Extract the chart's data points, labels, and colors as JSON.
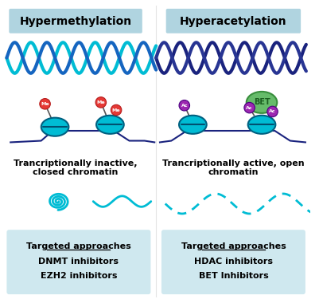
{
  "title_left": "Hypermethylation",
  "title_right": "Hyperacetylation",
  "label_left": "Trancriptionally inactive,\nclosed chromatin",
  "label_right": "Trancriptionally active, open\nchromatin",
  "box_left_title": "Targeted approaches",
  "box_left_items": [
    "DNMT inhibitors",
    "EZH2 inhibitors"
  ],
  "box_right_title": "Targeted approaches",
  "box_right_items": [
    "HDAC inhibitors",
    "BET Inhibitors"
  ],
  "bg_color": "#ffffff",
  "dna_left_color1": "#00bcd4",
  "dna_left_color2": "#1565c0",
  "dna_right_color1": "#1a237e",
  "dna_right_color2": "#283593",
  "nucleosome_color": "#00bcd4",
  "me_color": "#e53935",
  "ac_color": "#9c27b0",
  "bet_color": "#66bb6a",
  "chromatin_left_color": "#00bcd4",
  "chromatin_right_color": "#00bcd4",
  "box_color": "#cfe8ef",
  "header_box_color": "#b0d4e0"
}
